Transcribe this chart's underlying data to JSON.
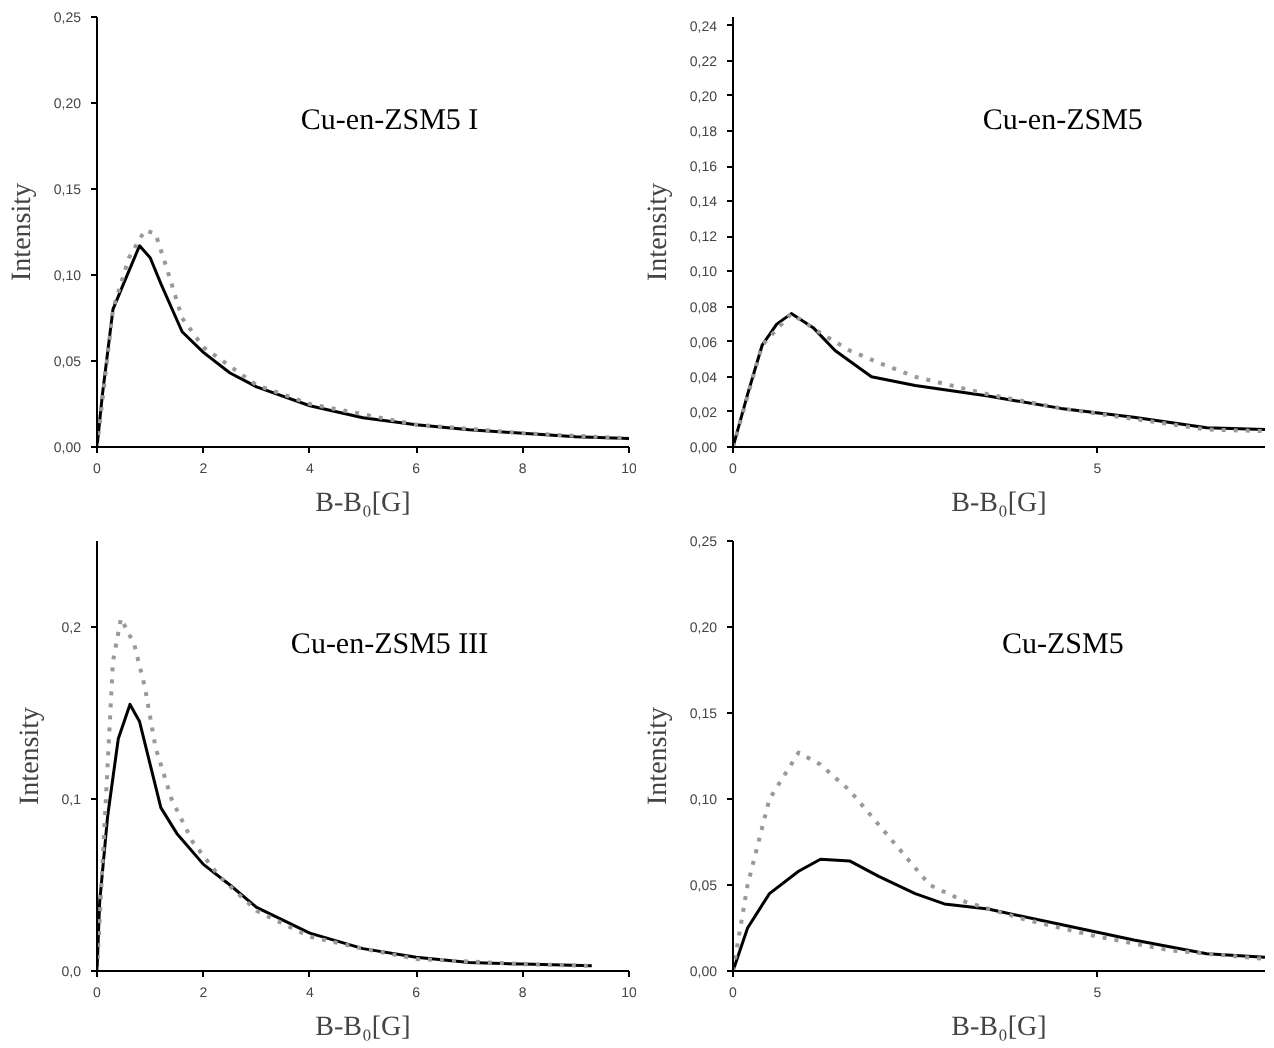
{
  "chart_data": [
    {
      "type": "line",
      "title": "Cu-en-ZSM5 I",
      "xlabel": "B-B₀[G]",
      "ylabel": "Intensity",
      "xlim": [
        0,
        10
      ],
      "xticks": [
        0,
        2,
        4,
        6,
        8,
        10
      ],
      "ylim": [
        0,
        0.25
      ],
      "yticks": [
        {
          "value": 0,
          "label": "0,00"
        },
        {
          "value": 0.05,
          "label": "0,05"
        },
        {
          "value": 0.1,
          "label": "0,10"
        },
        {
          "value": 0.15,
          "label": "0,15"
        },
        {
          "value": 0.2,
          "label": "0,20"
        },
        {
          "value": 0.25,
          "label": "0,25"
        }
      ],
      "grid": false,
      "series": [
        {
          "color": "#000000",
          "line_style": "solid",
          "x": [
            0,
            0.1,
            0.3,
            0.5,
            0.8,
            1.0,
            1.2,
            1.6,
            2,
            2.5,
            3,
            4,
            5,
            6,
            7,
            8,
            9,
            10
          ],
          "values": [
            0,
            0.03,
            0.08,
            0.095,
            0.117,
            0.11,
            0.095,
            0.067,
            0.055,
            0.043,
            0.035,
            0.024,
            0.017,
            0.013,
            0.01,
            0.008,
            0.006,
            0.005
          ]
        },
        {
          "color": "#999999",
          "line_style": "dotted",
          "x": [
            0,
            0.3,
            0.6,
            0.9,
            1.1,
            1.3,
            1.6,
            2,
            3,
            4,
            6,
            8,
            10
          ],
          "values": [
            0,
            0.08,
            0.11,
            0.126,
            0.124,
            0.105,
            0.075,
            0.058,
            0.036,
            0.025,
            0.013,
            0.008,
            0.005
          ]
        }
      ]
    },
    {
      "type": "line",
      "title": "Cu-en-ZSM5",
      "xlabel": "B-B₀[G]",
      "ylabel": "Intensity",
      "xlim": [
        0,
        7.3
      ],
      "xticks": [
        0,
        5
      ],
      "ylim": [
        0,
        0.245
      ],
      "yticks": [
        {
          "value": 0,
          "label": "0,00"
        },
        {
          "value": 0.02,
          "label": "0,02"
        },
        {
          "value": 0.04,
          "label": "0,04"
        },
        {
          "value": 0.06,
          "label": "0,06"
        },
        {
          "value": 0.08,
          "label": "0,08"
        },
        {
          "value": 0.1,
          "label": "0,10"
        },
        {
          "value": 0.12,
          "label": "0,12"
        },
        {
          "value": 0.14,
          "label": "0,14"
        },
        {
          "value": 0.16,
          "label": "0,16"
        },
        {
          "value": 0.18,
          "label": "0,18"
        },
        {
          "value": 0.2,
          "label": "0,20"
        },
        {
          "value": 0.22,
          "label": "0,22"
        },
        {
          "value": 0.24,
          "label": "0,24"
        }
      ],
      "grid": false,
      "series": [
        {
          "color": "#000000",
          "line_style": "solid",
          "x": [
            0,
            0.2,
            0.4,
            0.6,
            0.8,
            1.1,
            1.4,
            1.9,
            2.5,
            3.5,
            4.5,
            5.5,
            6.5,
            7.3
          ],
          "values": [
            0,
            0.03,
            0.058,
            0.07,
            0.076,
            0.068,
            0.055,
            0.04,
            0.035,
            0.029,
            0.022,
            0.017,
            0.011,
            0.01
          ]
        },
        {
          "color": "#999999",
          "line_style": "dotted",
          "x": [
            0,
            0.4,
            0.8,
            1.2,
            1.6,
            2,
            2.5,
            3.5,
            4.5,
            5.5,
            6.5,
            7.3
          ],
          "values": [
            0,
            0.058,
            0.076,
            0.065,
            0.055,
            0.048,
            0.04,
            0.03,
            0.022,
            0.016,
            0.01,
            0.009
          ]
        }
      ]
    },
    {
      "type": "line",
      "title": "Cu-en-ZSM5 III",
      "xlabel": "B-B₀[G]",
      "ylabel": "Intensity",
      "xlim": [
        0,
        10
      ],
      "xticks": [
        0,
        2,
        4,
        6,
        8,
        10
      ],
      "ylim": [
        0,
        0.25
      ],
      "yticks": [
        {
          "value": 0,
          "label": "0,0"
        },
        {
          "value": 0.1,
          "label": "0,1"
        },
        {
          "value": 0.2,
          "label": "0,2"
        }
      ],
      "grid": false,
      "series": [
        {
          "color": "#000000",
          "line_style": "solid",
          "x": [
            0,
            0.05,
            0.2,
            0.4,
            0.62,
            0.8,
            1.0,
            1.2,
            1.5,
            2,
            2.5,
            3,
            4,
            5,
            6,
            7,
            8,
            9.3
          ],
          "values": [
            0,
            0.04,
            0.09,
            0.135,
            0.155,
            0.145,
            0.12,
            0.095,
            0.08,
            0.062,
            0.05,
            0.037,
            0.022,
            0.013,
            0.008,
            0.005,
            0.004,
            0.003
          ]
        },
        {
          "color": "#999999",
          "line_style": "dotted",
          "x": [
            0,
            0.1,
            0.2,
            0.3,
            0.45,
            0.7,
            0.9,
            1.1,
            1.4,
            1.8,
            2.3,
            3,
            4,
            5,
            6,
            8,
            9.3
          ],
          "values": [
            0,
            0.06,
            0.12,
            0.18,
            0.205,
            0.19,
            0.165,
            0.13,
            0.1,
            0.075,
            0.055,
            0.035,
            0.02,
            0.013,
            0.007,
            0.004,
            0.003
          ]
        }
      ]
    },
    {
      "type": "line",
      "title": "Cu-ZSM5",
      "xlabel": "B-B₀[G]",
      "ylabel": "Intensity",
      "xlim": [
        0,
        7.3
      ],
      "xticks": [
        0,
        5
      ],
      "ylim": [
        0,
        0.25
      ],
      "yticks": [
        {
          "value": 0,
          "label": "0,00"
        },
        {
          "value": 0.05,
          "label": "0,05"
        },
        {
          "value": 0.1,
          "label": "0,10"
        },
        {
          "value": 0.15,
          "label": "0,15"
        },
        {
          "value": 0.2,
          "label": "0,20"
        },
        {
          "value": 0.25,
          "label": "0,25"
        }
      ],
      "grid": false,
      "series": [
        {
          "color": "#000000",
          "line_style": "solid",
          "x": [
            0,
            0.2,
            0.5,
            0.9,
            1.2,
            1.6,
            2,
            2.5,
            2.9,
            3.5,
            4.5,
            5.5,
            6.5,
            7.3
          ],
          "values": [
            0,
            0.025,
            0.045,
            0.058,
            0.065,
            0.064,
            0.055,
            0.045,
            0.039,
            0.036,
            0.027,
            0.018,
            0.01,
            0.008
          ]
        },
        {
          "color": "#999999",
          "line_style": "dotted",
          "x": [
            0,
            0.2,
            0.5,
            0.9,
            1.2,
            1.6,
            2,
            2.4,
            2.7,
            3.2,
            4,
            5,
            6,
            7.3
          ],
          "values": [
            0,
            0.05,
            0.1,
            0.127,
            0.12,
            0.105,
            0.085,
            0.065,
            0.05,
            0.04,
            0.03,
            0.02,
            0.012,
            0.007
          ]
        }
      ]
    }
  ]
}
